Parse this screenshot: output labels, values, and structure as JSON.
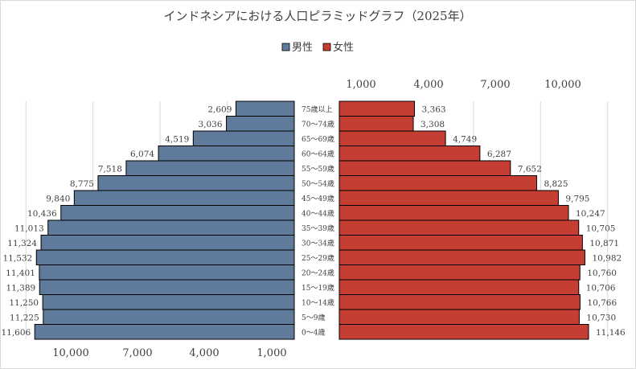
{
  "chart_data": {
    "type": "bar",
    "subtype": "population-pyramid",
    "title": "インドネシアにおける人口ピラミッドグラフ（2025年）",
    "legend": [
      {
        "name": "男性",
        "color": "#5f7a9a"
      },
      {
        "name": "女性",
        "color": "#c63e33"
      }
    ],
    "legend_position": "top",
    "categories": [
      "75歳以上",
      "70〜74歳",
      "65〜69歳",
      "60〜64歳",
      "55〜59歳",
      "50〜54歳",
      "45〜49歳",
      "40〜44歳",
      "35〜39歳",
      "30〜34歳",
      "25〜29歳",
      "20〜24歳",
      "15〜19歳",
      "10〜14歳",
      "5〜9歳",
      "0〜4歳"
    ],
    "series": [
      {
        "name": "男性",
        "values": [
          2609,
          3036,
          4519,
          6074,
          7518,
          8775,
          9840,
          10436,
          11013,
          11324,
          11532,
          11401,
          11389,
          11250,
          11225,
          11606
        ],
        "labels": [
          "2,609",
          "3,036",
          "4,519",
          "6,074",
          "7,518",
          "8,775",
          "9,840",
          "10,436",
          "11,013",
          "11,324",
          "11,532",
          "11,401",
          "11,389",
          "11,250",
          "11,225",
          "11,606"
        ]
      },
      {
        "name": "女性",
        "values": [
          3363,
          3308,
          4749,
          6287,
          7652,
          8825,
          9795,
          10247,
          10705,
          10871,
          10982,
          10760,
          10706,
          10766,
          10730,
          11146
        ],
        "labels": [
          "3,363",
          "3,308",
          "4,749",
          "6,287",
          "7,652",
          "8,825",
          "9,795",
          "10,247",
          "10,705",
          "10,871",
          "10,982",
          "10,760",
          "10,706",
          "10,766",
          "10,730",
          "11,146"
        ]
      }
    ],
    "male_axis_ticks": [
      "10,000",
      "7,000",
      "4,000",
      "1,000"
    ],
    "female_axis_ticks": [
      "1,000",
      "4,000",
      "7,000",
      "10,000"
    ],
    "xlim": [
      0,
      12000
    ],
    "grid": true
  }
}
